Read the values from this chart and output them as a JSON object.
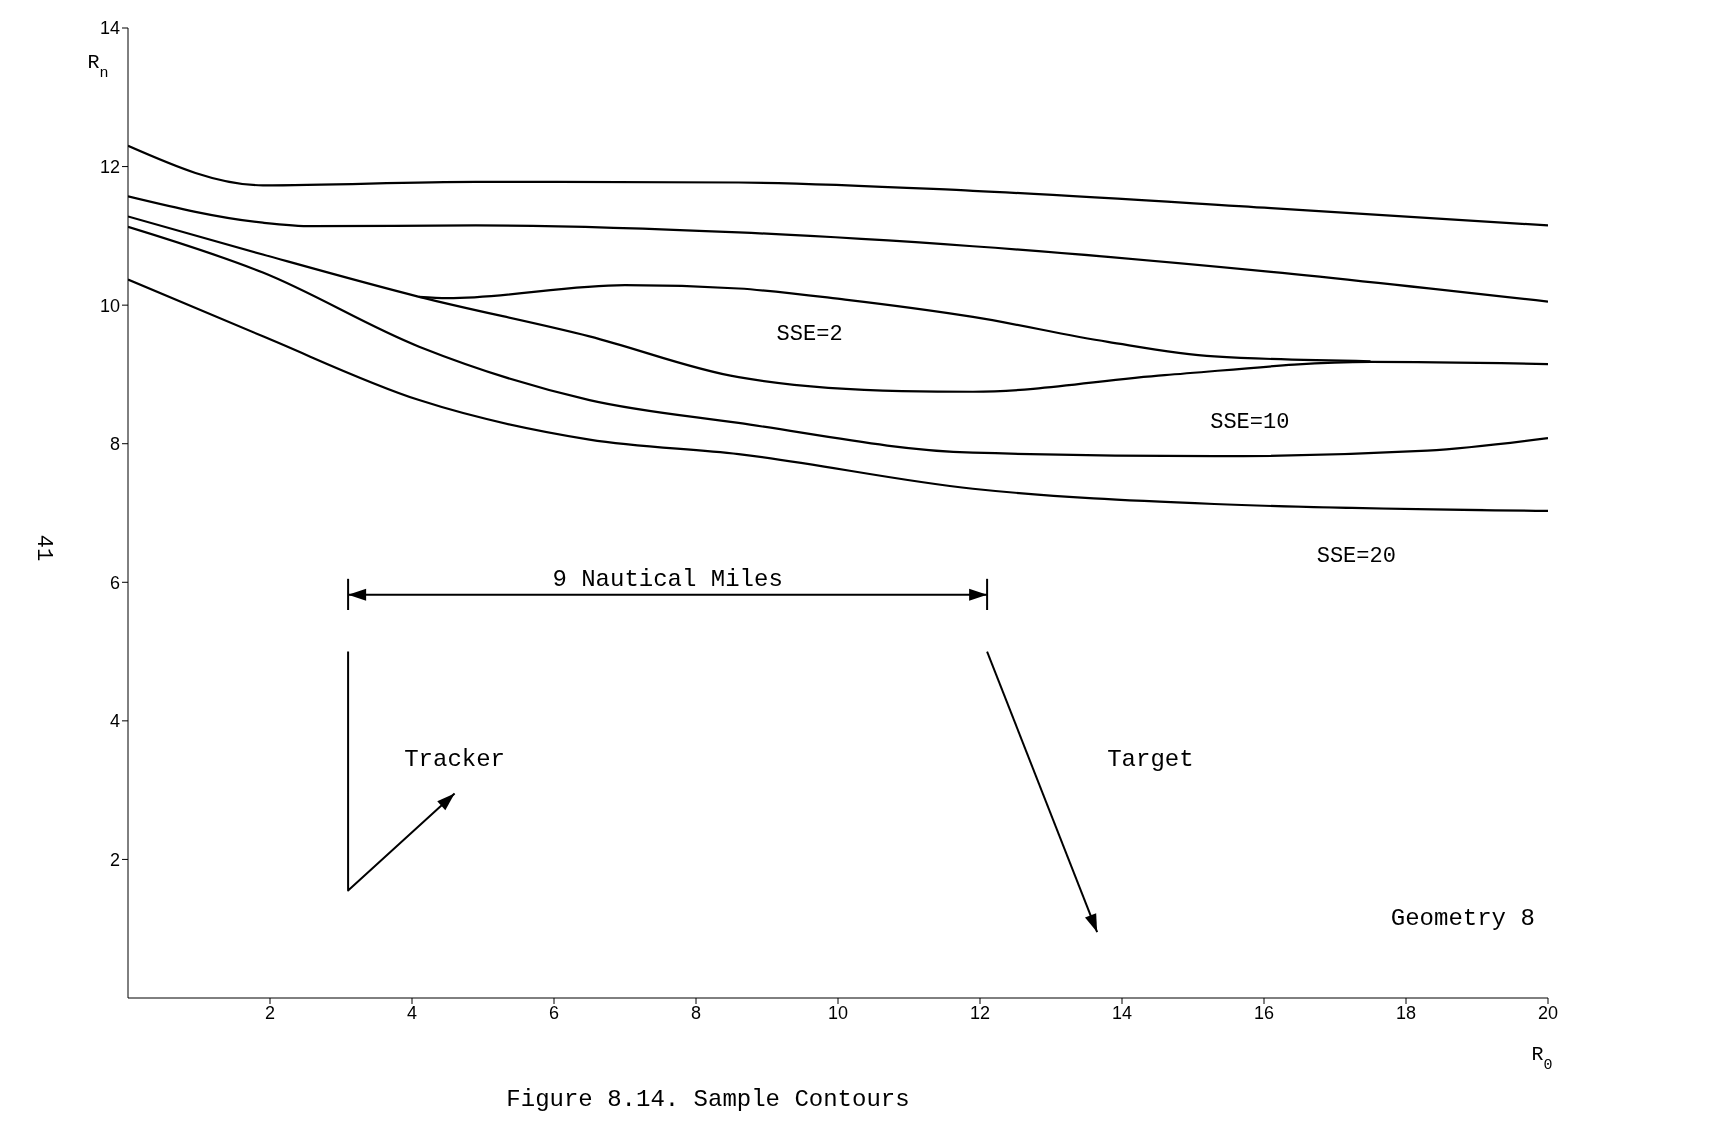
{
  "chart_data": {
    "type": "line",
    "xlabel": "R$_{0}$",
    "ylabel": "R$_{n}$",
    "xlim": [
      0,
      20
    ],
    "ylim": [
      0,
      14
    ],
    "xticks": [
      2,
      4,
      6,
      8,
      10,
      12,
      14,
      16,
      18,
      20
    ],
    "yticks": [
      2,
      4,
      6,
      8,
      10,
      12,
      14
    ],
    "marker": "none",
    "line_style": "solid",
    "series": [
      {
        "color": "#000000",
        "x": [
          0,
          1.9,
          4.9,
          8.6,
          11.9,
          16.1,
          20
        ],
        "values": [
          12.3,
          11.73,
          11.78,
          11.77,
          11.65,
          11.4,
          11.15
        ]
      },
      {
        "color": "#000000",
        "x": [
          0,
          1.9,
          2.6,
          4.9,
          8.6,
          11.9,
          16.1,
          20
        ],
        "values": [
          11.57,
          11.19,
          11.14,
          11.15,
          11.05,
          10.85,
          10.48,
          10.05
        ]
      },
      {
        "color": "#000000",
        "x": [
          0,
          1.9,
          4.1,
          6.5,
          8.6,
          10.9,
          11.9,
          14.6,
          17.5,
          20
        ],
        "values": [
          11.28,
          10.73,
          10.12,
          9.55,
          8.96,
          8.76,
          8.75,
          8.99,
          9.18,
          9.15
        ]
      },
      {
        "color": "#000000",
        "x": [
          4.1,
          4.5,
          7,
          8.6,
          10.1,
          11.9,
          13.8,
          15.3,
          17.5
        ],
        "values": [
          10.12,
          10.1,
          10.29,
          10.24,
          10.08,
          9.83,
          9.47,
          9.26,
          9.19
        ]
      },
      {
        "color": "#000000",
        "x": [
          0,
          1.9,
          4.1,
          6.5,
          8.6,
          11.9,
          15.3,
          18.3,
          20
        ],
        "values": [
          11.13,
          10.47,
          9.4,
          8.63,
          8.3,
          7.87,
          7.82,
          7.9,
          8.08
        ]
      },
      {
        "color": "#000000",
        "x": [
          0,
          1.9,
          4.1,
          6.5,
          8.6,
          11.9,
          15.3,
          20
        ],
        "values": [
          10.37,
          9.55,
          8.63,
          8.06,
          7.85,
          7.35,
          7.13,
          7.03
        ]
      }
    ],
    "annotations": [
      "SSE=2",
      "SSE=10",
      "SSE=20",
      "9 Nautical Miles",
      "Tracker",
      "Target",
      "Geometry 8",
      "Figure 8.14. Sample Contours",
      "41"
    ]
  }
}
